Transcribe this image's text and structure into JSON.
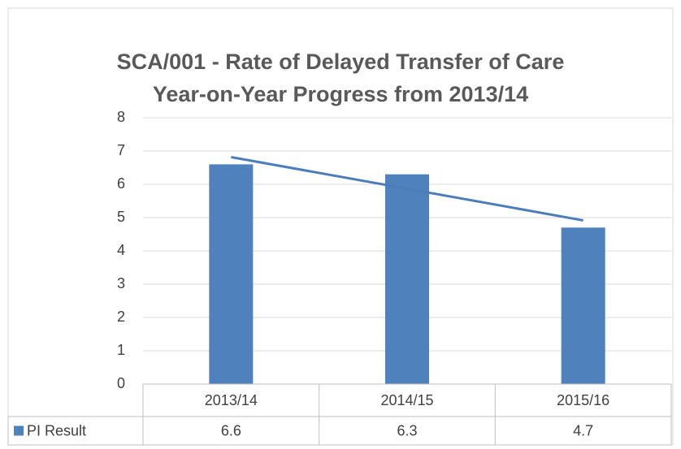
{
  "chart_data": {
    "type": "bar",
    "title": [
      "SCA/001 - Rate of Delayed Transfer of Care",
      "Year-on-Year Progress from 2013/14"
    ],
    "categories": [
      "2013/14",
      "2014/15",
      "2015/16"
    ],
    "series": [
      {
        "name": "PI Result",
        "color": "#4f81bd",
        "values": [
          6.6,
          6.3,
          4.7
        ]
      }
    ],
    "ylim": [
      0,
      8
    ],
    "yticks": [
      0,
      1,
      2,
      3,
      4,
      5,
      6,
      7,
      8
    ],
    "grid": true,
    "trendline": "linear",
    "trendline_color": "#4a7ebb",
    "data_table": true
  }
}
